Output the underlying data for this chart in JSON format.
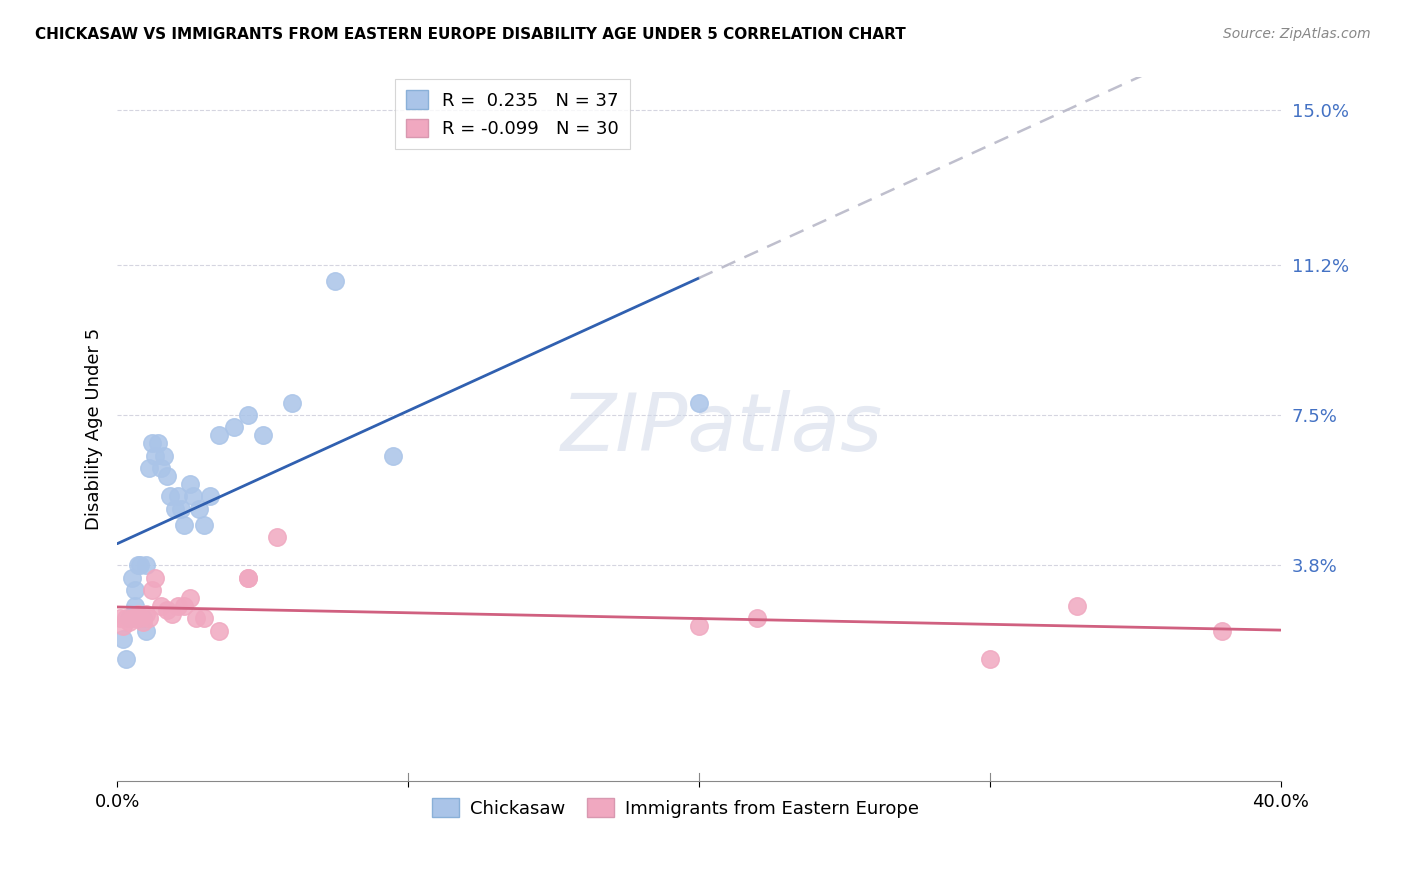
{
  "title": "CHICKASAW VS IMMIGRANTS FROM EASTERN EUROPE DISABILITY AGE UNDER 5 CORRELATION CHART",
  "source": "Source: ZipAtlas.com",
  "ylabel": "Disability Age Under 5",
  "ytick_labels": [
    "3.8%",
    "7.5%",
    "11.2%",
    "15.0%"
  ],
  "ytick_values": [
    3.8,
    7.5,
    11.2,
    15.0
  ],
  "xlim": [
    0.0,
    40.0
  ],
  "ylim": [
    -1.5,
    15.8
  ],
  "color_blue": "#aac4e8",
  "color_pink": "#f0a8c0",
  "trendline_blue": "#3060b0",
  "trendline_pink": "#d06080",
  "trendline_gray": "#b8b8c8",
  "chickasaw_x": [
    0.2,
    0.3,
    0.4,
    0.5,
    0.6,
    0.6,
    0.7,
    0.7,
    0.8,
    0.9,
    1.0,
    1.0,
    1.1,
    1.2,
    1.3,
    1.4,
    1.5,
    1.6,
    1.7,
    1.8,
    2.0,
    2.1,
    2.2,
    2.3,
    2.5,
    2.6,
    2.8,
    3.0,
    3.2,
    3.5,
    4.0,
    4.5,
    5.0,
    6.0,
    7.5,
    9.5,
    20.0
  ],
  "chickasaw_y": [
    2.0,
    1.5,
    2.5,
    3.5,
    3.2,
    2.8,
    3.8,
    2.5,
    3.8,
    2.5,
    3.8,
    2.2,
    6.2,
    6.8,
    6.5,
    6.8,
    6.2,
    6.5,
    6.0,
    5.5,
    5.2,
    5.5,
    5.2,
    4.8,
    5.8,
    5.5,
    5.2,
    4.8,
    5.5,
    7.0,
    7.2,
    7.5,
    7.0,
    7.8,
    10.8,
    6.5,
    7.8
  ],
  "eastern_europe_x": [
    0.1,
    0.2,
    0.3,
    0.4,
    0.5,
    0.6,
    0.7,
    0.8,
    0.9,
    1.0,
    1.1,
    1.2,
    1.3,
    1.5,
    1.7,
    1.9,
    2.1,
    2.3,
    2.5,
    2.7,
    3.0,
    3.5,
    4.5,
    4.5,
    5.5,
    20.0,
    22.0,
    30.0,
    33.0,
    38.0
  ],
  "eastern_europe_y": [
    2.5,
    2.3,
    2.5,
    2.4,
    2.5,
    2.5,
    2.6,
    2.5,
    2.4,
    2.6,
    2.5,
    3.2,
    3.5,
    2.8,
    2.7,
    2.6,
    2.8,
    2.8,
    3.0,
    2.5,
    2.5,
    2.2,
    3.5,
    3.5,
    4.5,
    2.3,
    2.5,
    1.5,
    2.8,
    2.2
  ],
  "blue_trend_solid_xmax": 20.0,
  "blue_trend_start_x": 0.0,
  "blue_trend_end_x": 40.0
}
